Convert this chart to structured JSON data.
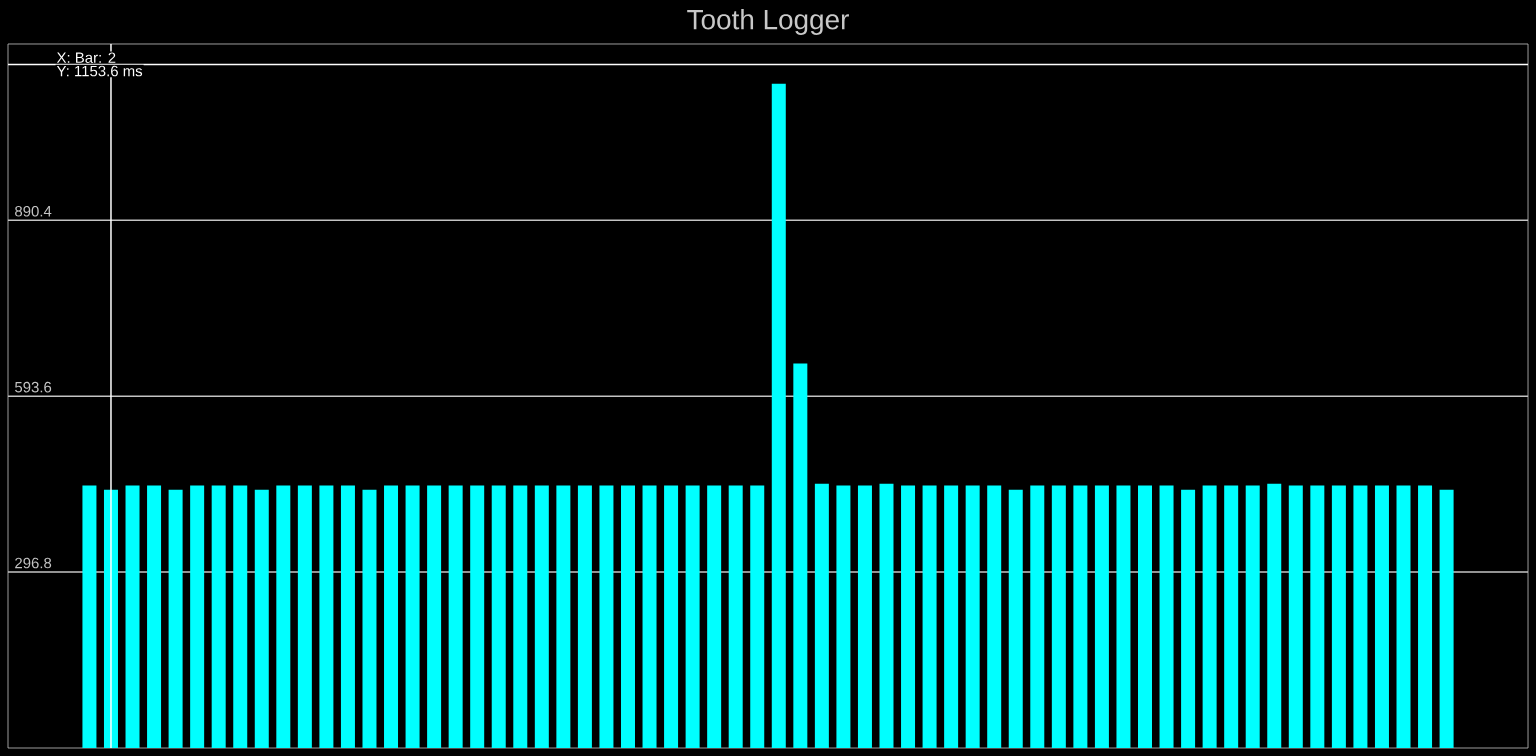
{
  "chart_data": {
    "type": "bar",
    "title": "Tooth Logger",
    "categories": [
      null,
      null,
      null,
      null,
      null,
      null,
      null,
      null,
      null,
      null,
      null,
      null,
      null,
      null,
      null,
      null,
      null,
      null,
      null,
      null,
      null,
      null,
      null,
      null,
      null,
      null,
      null,
      null,
      null,
      null,
      null,
      null,
      null,
      null,
      null,
      null,
      null,
      null,
      null,
      null,
      null,
      null,
      null,
      null,
      null,
      null,
      null,
      null,
      null,
      null,
      null,
      null,
      null,
      null,
      null,
      null,
      null,
      null,
      null,
      null,
      null,
      null,
      null,
      null
    ],
    "values": [
      443,
      436,
      443,
      443,
      436,
      443,
      443,
      443,
      436,
      443,
      443,
      443,
      443,
      436,
      443,
      443,
      443,
      443,
      443,
      443,
      443,
      443,
      443,
      443,
      443,
      443,
      443,
      443,
      443,
      443,
      443,
      443,
      1121,
      649,
      446,
      443,
      443,
      446,
      443,
      443,
      443,
      443,
      443,
      436,
      443,
      443,
      443,
      443,
      443,
      443,
      443,
      436,
      443,
      443,
      443,
      446,
      443,
      443,
      443,
      443,
      443,
      443,
      443,
      436
    ],
    "color": "#00ffff",
    "ylim": [
      0,
      1188
    ],
    "yticks": [
      296.8,
      593.6,
      890.4
    ],
    "grid": "y",
    "annotations": [
      "X: Bar: 2"
    ],
    "ref_lines": [
      {
        "axis": "y",
        "value": 1153.6,
        "label": "Y: 1153.6 ms",
        "color": "#ffffff"
      }
    ]
  }
}
